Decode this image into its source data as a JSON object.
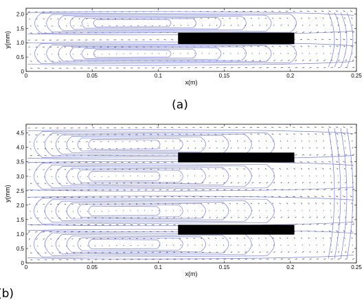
{
  "chart_data": [
    {
      "type": "vector-field",
      "panel_label": "(a)",
      "xlabel": "x(m)",
      "ylabel": "y(mm)",
      "xlim": [
        0,
        0.25
      ],
      "ylim": [
        0,
        2.2
      ],
      "xticks": [
        "0",
        "0.05",
        "0.1",
        "0.15",
        "0.2",
        "0.25"
      ],
      "yticks": [
        "0",
        "0.5",
        "1.0",
        "1.5",
        "2.0"
      ],
      "obstacles": [
        {
          "x0": 0.115,
          "x1": 0.203,
          "y0": 0.95,
          "y1": 1.35
        }
      ],
      "vortices": [
        {
          "cx": 0.07,
          "cy": 1.68,
          "rx": 0.05,
          "ry": 0.35
        },
        {
          "cx": 0.07,
          "cy": 0.62,
          "rx": 0.05,
          "ry": 0.35
        }
      ],
      "line_color": "#5b63d9",
      "obstacle_color": "#000000"
    },
    {
      "type": "vector-field",
      "panel_label": "(b)",
      "xlabel": "x(m)",
      "ylabel": "y(mm)",
      "xlim": [
        0,
        0.25
      ],
      "ylim": [
        0,
        4.8
      ],
      "xticks": [
        "0",
        "0.05",
        "0.1",
        "0.15",
        "0.2",
        "0.25"
      ],
      "yticks": [
        "0",
        "0.5",
        "1.0",
        "1.5",
        "2.0",
        "2.5",
        "3.0",
        "3.5",
        "4.0",
        "4.5"
      ],
      "obstacles": [
        {
          "x0": 0.115,
          "x1": 0.203,
          "y0": 3.48,
          "y1": 3.82
        },
        {
          "x0": 0.115,
          "x1": 0.203,
          "y0": 0.98,
          "y1": 1.32
        }
      ],
      "vortices": [
        {
          "cx": 0.065,
          "cy": 4.1,
          "rx": 0.045,
          "ry": 0.45
        },
        {
          "cx": 0.065,
          "cy": 3.0,
          "rx": 0.045,
          "ry": 0.45
        },
        {
          "cx": 0.065,
          "cy": 1.8,
          "rx": 0.045,
          "ry": 0.45
        },
        {
          "cx": 0.065,
          "cy": 0.65,
          "rx": 0.045,
          "ry": 0.45
        }
      ],
      "line_color": "#5b63d9",
      "obstacle_color": "#000000"
    }
  ]
}
